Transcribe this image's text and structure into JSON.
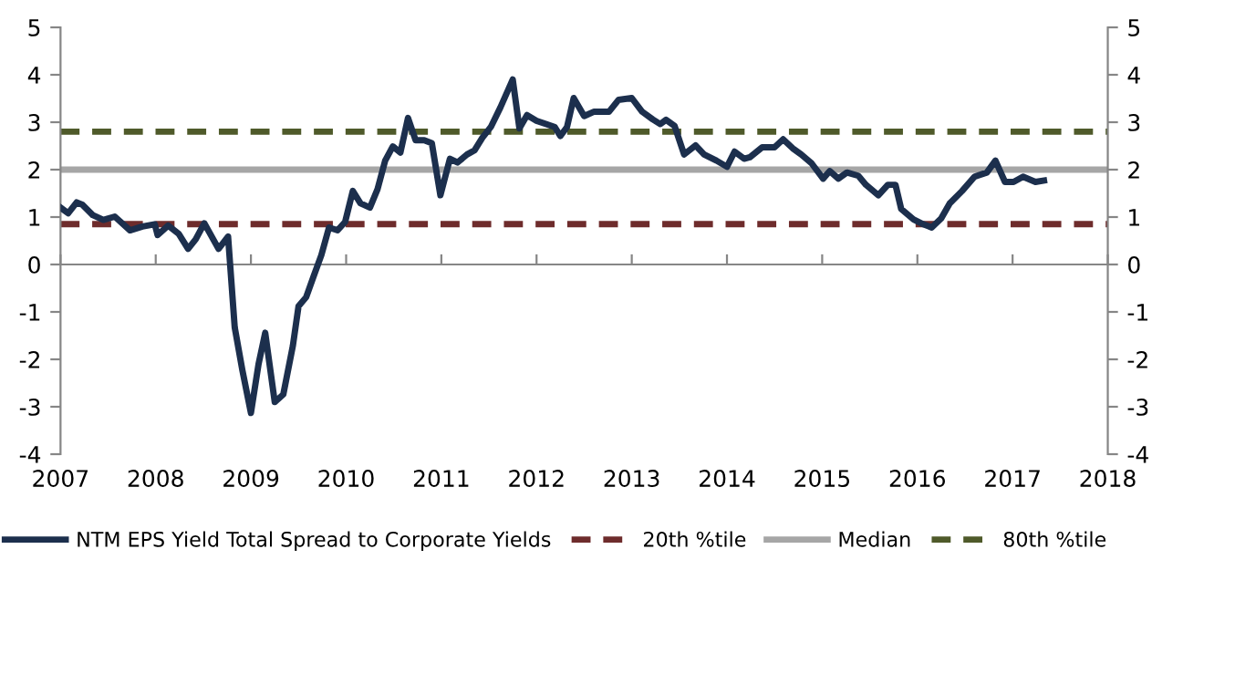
{
  "chart_data": {
    "type": "line",
    "x": [
      2007.0,
      2007.08,
      2007.17,
      2007.23,
      2007.34,
      2007.45,
      2007.57,
      2007.73,
      2007.86,
      2007.99,
      2008.02,
      2008.13,
      2008.24,
      2008.34,
      2008.42,
      2008.51,
      2008.66,
      2008.76,
      2008.83,
      2008.91,
      2009.0,
      2009.08,
      2009.15,
      2009.25,
      2009.34,
      2009.44,
      2009.5,
      2009.58,
      2009.66,
      2009.74,
      2009.82,
      2009.91,
      2009.99,
      2010.07,
      2010.15,
      2010.25,
      2010.33,
      2010.41,
      2010.49,
      2010.57,
      2010.65,
      2010.73,
      2010.82,
      2010.9,
      2010.99,
      2011.09,
      2011.17,
      2011.27,
      2011.35,
      2011.43,
      2011.52,
      2011.62,
      2011.75,
      2011.82,
      2011.9,
      2012.0,
      2012.1,
      2012.19,
      2012.25,
      2012.32,
      2012.39,
      2012.5,
      2012.6,
      2012.76,
      2012.86,
      2013.0,
      2013.11,
      2013.22,
      2013.3,
      2013.36,
      2013.45,
      2013.55,
      2013.67,
      2013.76,
      2013.89,
      2014.0,
      2014.08,
      2014.18,
      2014.24,
      2014.37,
      2014.5,
      2014.59,
      2014.69,
      2014.78,
      2014.89,
      2015.01,
      2015.08,
      2015.17,
      2015.26,
      2015.38,
      2015.46,
      2015.59,
      2015.69,
      2015.77,
      2015.83,
      2015.96,
      2016.06,
      2016.15,
      2016.25,
      2016.34,
      2016.47,
      2016.6,
      2016.73,
      2016.82,
      2016.92,
      2017.01,
      2017.11,
      2017.24,
      2017.33
    ],
    "series": [
      {
        "name": "NTM EPS Yield Total Spread to Corporate Yields",
        "color": "#1c2f4d",
        "values": [
          1.2,
          1.08,
          1.31,
          1.26,
          1.04,
          0.94,
          1.01,
          0.72,
          0.8,
          0.85,
          0.62,
          0.82,
          0.65,
          0.33,
          0.53,
          0.87,
          0.33,
          0.59,
          -1.33,
          -2.23,
          -3.13,
          -2.1,
          -1.44,
          -2.9,
          -2.74,
          -1.72,
          -0.88,
          -0.69,
          -0.24,
          0.2,
          0.78,
          0.72,
          0.9,
          1.55,
          1.29,
          1.2,
          1.59,
          2.19,
          2.49,
          2.36,
          3.09,
          2.62,
          2.62,
          2.56,
          1.46,
          2.23,
          2.15,
          2.32,
          2.41,
          2.67,
          2.9,
          3.31,
          3.9,
          2.87,
          3.15,
          3.03,
          2.96,
          2.9,
          2.71,
          2.9,
          3.51,
          3.13,
          3.22,
          3.22,
          3.47,
          3.51,
          3.22,
          3.06,
          2.96,
          3.05,
          2.92,
          2.32,
          2.51,
          2.32,
          2.19,
          2.06,
          2.38,
          2.23,
          2.26,
          2.47,
          2.47,
          2.64,
          2.45,
          2.32,
          2.13,
          1.81,
          1.97,
          1.81,
          1.94,
          1.87,
          1.68,
          1.46,
          1.68,
          1.68,
          1.17,
          0.95,
          0.85,
          0.78,
          0.97,
          1.29,
          1.55,
          1.85,
          1.94,
          2.19,
          1.74,
          1.74,
          1.85,
          1.74,
          1.77
        ]
      }
    ],
    "ref_lines": [
      {
        "axis": "y",
        "value": 0.85,
        "label": "20th %tile",
        "color": "#6e2c2c",
        "line_style": "dashed"
      },
      {
        "axis": "y",
        "value": 2.0,
        "label": "Median",
        "color": "#a6a6a6",
        "line_style": "solid"
      },
      {
        "axis": "y",
        "value": 2.8,
        "label": "80th %tile",
        "color": "#4f5a2a",
        "line_style": "dashed"
      }
    ],
    "xlim": [
      2007,
      2018
    ],
    "xticks": [
      2007,
      2008,
      2009,
      2010,
      2011,
      2012,
      2013,
      2014,
      2015,
      2016,
      2017,
      2018
    ],
    "ylim": [
      -4,
      5
    ],
    "yticks": [
      -4,
      -3,
      -2,
      -1,
      0,
      1,
      2,
      3,
      4,
      5
    ],
    "y2lim": [
      -4,
      5
    ],
    "y2ticks": [
      -4,
      -3,
      -2,
      -1,
      0,
      1,
      2,
      3,
      4,
      5
    ],
    "grid": false,
    "legend": "bottom",
    "marker": "none",
    "line_style": "solid"
  }
}
